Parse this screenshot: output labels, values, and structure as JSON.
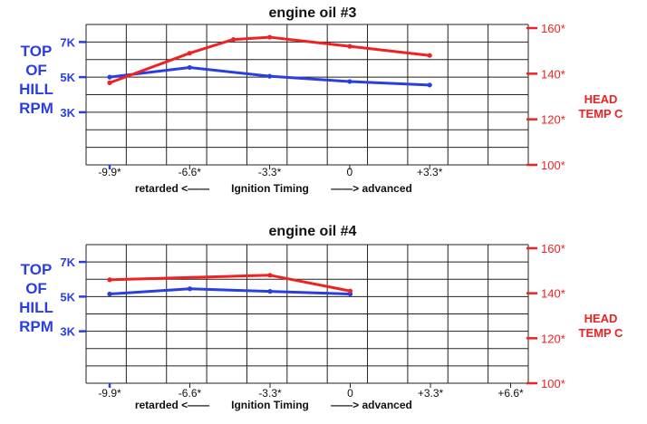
{
  "chart_data": [
    {
      "type": "line",
      "title": "engine oil #3",
      "x": [
        "-9.9*",
        "-6.6*",
        "-3.3*",
        "0",
        "+3.3*"
      ],
      "x_values": [
        -9.9,
        -6.6,
        -3.3,
        0,
        3.3
      ],
      "xlabel": {
        "left": "retarded <——",
        "center": "Ignition Timing",
        "right": "——> advanced"
      },
      "ylabel_left": [
        "TOP",
        "OF",
        "HILL",
        "RPM"
      ],
      "ylabel_right": [
        "HEAD",
        "TEMP C"
      ],
      "left_ticks": [
        "7K",
        "5K",
        "3K"
      ],
      "right_ticks": [
        "160*",
        "140*",
        "120*",
        "100*"
      ],
      "ylim_left": [
        0,
        8000
      ],
      "ylim_right": [
        100,
        160
      ],
      "grid": true,
      "series": [
        {
          "axis": "left",
          "color": "#2a3fe0",
          "x": [
            -9.9,
            -6.6,
            -3.3,
            0,
            3.3
          ],
          "values": [
            5000,
            5550,
            5050,
            4750,
            4550
          ]
        },
        {
          "axis": "right",
          "color": "#ee2222",
          "x": [
            -9.9,
            -6.6,
            -4.8,
            -3.3,
            0,
            3.3
          ],
          "values": [
            136,
            149,
            155,
            156,
            152,
            148
          ]
        }
      ]
    },
    {
      "type": "line",
      "title": "engine oil #4",
      "x": [
        "-9.9*",
        "-6.6*",
        "-3.3*",
        "0",
        "+3.3*",
        "+6.6*"
      ],
      "x_values": [
        -9.9,
        -6.6,
        -3.3,
        0,
        3.3,
        6.6
      ],
      "xlabel": {
        "left": "retarded <——",
        "center": "Ignition Timing",
        "right": "——> advanced"
      },
      "ylabel_left": [
        "TOP",
        "OF",
        "HILL",
        "RPM"
      ],
      "ylabel_right": [
        "HEAD",
        "TEMP C"
      ],
      "left_ticks": [
        "7K",
        "5K",
        "3K"
      ],
      "right_ticks": [
        "160*",
        "140*",
        "120*",
        "100*"
      ],
      "ylim_left": [
        0,
        8000
      ],
      "ylim_right": [
        100,
        160
      ],
      "grid": true,
      "series": [
        {
          "axis": "left",
          "color": "#2a3fe0",
          "x": [
            -9.9,
            -6.6,
            -3.3,
            0
          ],
          "values": [
            5150,
            5450,
            5300,
            5150
          ]
        },
        {
          "axis": "right",
          "color": "#ee2222",
          "x": [
            -9.9,
            -3.3,
            0
          ],
          "values": [
            146,
            148,
            141
          ]
        }
      ]
    }
  ],
  "colors": {
    "rpm": "#2a3fe0",
    "temp": "#ee2222",
    "grid": "#222222"
  }
}
